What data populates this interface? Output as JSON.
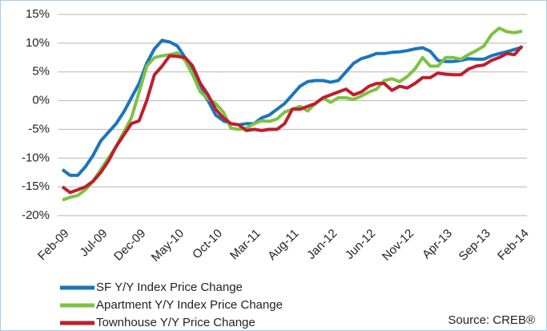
{
  "chart_data": {
    "type": "line",
    "categories": [
      "Feb-09",
      null,
      null,
      null,
      null,
      "Jul-09",
      null,
      null,
      null,
      null,
      "Dec-09",
      null,
      null,
      null,
      null,
      "May-10",
      null,
      null,
      null,
      null,
      "Oct-10",
      null,
      null,
      null,
      null,
      "Mar-11",
      null,
      null,
      null,
      null,
      "Aug-11",
      null,
      null,
      null,
      null,
      "Jan-12",
      null,
      null,
      null,
      null,
      "Jun-12",
      null,
      null,
      null,
      null,
      "Nov-12",
      null,
      null,
      null,
      null,
      "Apr-13",
      null,
      null,
      null,
      null,
      "Sep-13",
      null,
      null,
      null,
      null,
      "Feb-14"
    ],
    "series": [
      {
        "name": "SF Y/Y Index Price Change",
        "color": "#1b75bc",
        "values": [
          -12,
          -13,
          -13,
          -11.5,
          -9.5,
          -7,
          -5.5,
          -4,
          -2,
          0.5,
          3,
          6.5,
          9,
          10.5,
          10.2,
          9.5,
          7.5,
          5,
          2,
          0,
          -2.5,
          -3.5,
          -4,
          -4.2,
          -4,
          -4,
          -3,
          -2.5,
          -1.5,
          -0.5,
          1,
          2.5,
          3.3,
          3.5,
          3.5,
          3.2,
          3.5,
          5,
          6.5,
          7.3,
          7.7,
          8.2,
          8.2,
          8.4,
          8.5,
          8.7,
          9,
          9.2,
          8.6,
          7,
          6.8,
          6.8,
          7,
          7.3,
          7.2,
          7.2,
          7.8,
          8.2,
          8.5,
          8.9,
          9.3
        ]
      },
      {
        "name": "Apartment Y/Y Index Price Change",
        "color": "#7dc242",
        "values": [
          -17.3,
          -16.8,
          -16.5,
          -15.5,
          -14,
          -12,
          -10,
          -8,
          -5.5,
          -3,
          1.5,
          6,
          7.5,
          7.8,
          8,
          8.3,
          7,
          4.5,
          1.5,
          0.3,
          -0.5,
          -2,
          -4.8,
          -5,
          -4.8,
          -4,
          -3.5,
          -3.6,
          -3.2,
          -2,
          -1.5,
          -1,
          -1.8,
          -0.5,
          0.5,
          -0.3,
          0.5,
          0.5,
          0.2,
          0.8,
          1.5,
          2,
          3.5,
          3.8,
          3.3,
          4.2,
          5.5,
          7.5,
          6,
          6,
          7.5,
          7.5,
          7.2,
          8,
          8.7,
          9.5,
          11.5,
          12.6,
          12,
          11.8,
          12.1
        ]
      },
      {
        "name": "Townhouse Y/Y Price Change",
        "color": "#be1e2d",
        "values": [
          -15,
          -16,
          -15.5,
          -15,
          -14,
          -12.5,
          -10.5,
          -8,
          -6,
          -4,
          -3.5,
          0,
          4.5,
          6,
          7.8,
          7.7,
          7.5,
          6,
          3,
          1,
          -1.5,
          -3,
          -4,
          -4.2,
          -5.2,
          -5,
          -5.2,
          -5,
          -5,
          -4,
          -1.5,
          -1.5,
          -1,
          -0.5,
          0.5,
          1,
          1.5,
          2,
          1,
          1.5,
          2.5,
          3,
          3,
          1.8,
          2.5,
          2.2,
          3,
          4,
          4,
          4.8,
          4.6,
          4.5,
          4.5,
          5.5,
          6,
          6.2,
          7,
          7.5,
          8.2,
          8,
          9.5
        ]
      }
    ],
    "ylim": [
      -20,
      15
    ],
    "yticks": [
      {
        "value": -20,
        "label": "-20%"
      },
      {
        "value": -15,
        "label": "-15%"
      },
      {
        "value": -10,
        "label": "-10%"
      },
      {
        "value": -5,
        "label": "-5%"
      },
      {
        "value": 0,
        "label": "0%"
      },
      {
        "value": 5,
        "label": "5%"
      },
      {
        "value": 10,
        "label": "10%"
      },
      {
        "value": 15,
        "label": "15%"
      }
    ],
    "grid": true,
    "legend": "bottom-left",
    "source": "Source: CREB®"
  }
}
